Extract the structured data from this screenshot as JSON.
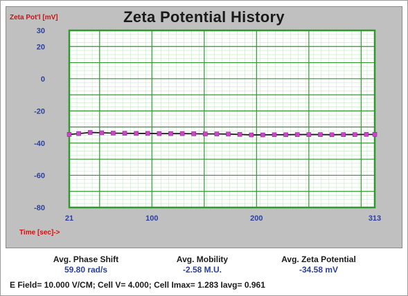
{
  "chart_data": {
    "type": "line",
    "title": "Zeta Potential History",
    "ylabel": "Zeta Pot'l [mV]",
    "xlabel": "Time [sec]->",
    "xlim": [
      21,
      313
    ],
    "ylim": [
      -80,
      30
    ],
    "x_ticks": [
      21,
      100,
      200,
      313
    ],
    "y_ticks": [
      30,
      20,
      0,
      -20,
      -40,
      -60,
      -80
    ],
    "grid": true,
    "series": [
      {
        "color": "#1a1a1a",
        "marker_color": "#cc44cc",
        "x": [
          21,
          30,
          41,
          52,
          63,
          74,
          85,
          96,
          107,
          118,
          129,
          140,
          151,
          162,
          173,
          184,
          195,
          206,
          217,
          228,
          239,
          250,
          261,
          272,
          283,
          294,
          305,
          313
        ],
        "y": [
          -34.6,
          -34.1,
          -33.4,
          -33.6,
          -33.8,
          -33.9,
          -34.0,
          -34.0,
          -34.1,
          -34.1,
          -34.1,
          -34.2,
          -34.3,
          -34.3,
          -34.4,
          -34.6,
          -34.9,
          -34.9,
          -34.8,
          -34.8,
          -34.7,
          -34.7,
          -34.7,
          -34.8,
          -34.7,
          -34.7,
          -34.6,
          -34.6
        ]
      }
    ]
  },
  "stats": {
    "phase_shift_label": "Avg. Phase Shift",
    "phase_shift_value": "59.80 rad/s",
    "mobility_label": "Avg. Mobility",
    "mobility_value": "-2.58 M.U.",
    "zeta_label": "Avg. Zeta Potential",
    "zeta_value": "-34.58 mV"
  },
  "footer": {
    "line": "E Field= 10.000 V/CM; Cell V= 4.000; Cell Imax= 1.283 Iavg= 0.961"
  },
  "colors": {
    "plot_background": "#ffffff",
    "major_grid": "#2e9a2e",
    "minor_grid": "#c6e8c6",
    "tick_label": "#2b3f9e",
    "axis_label": "#d01010"
  }
}
